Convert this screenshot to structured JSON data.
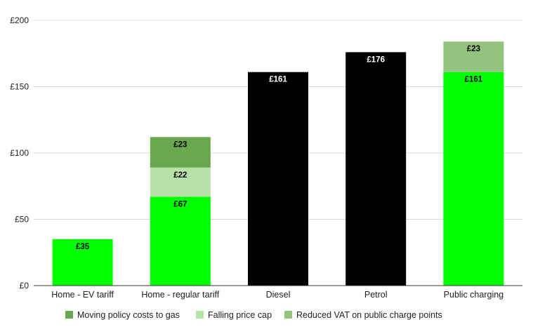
{
  "chart_data": {
    "type": "bar",
    "stacked": true,
    "categories": [
      "Home - EV tariff",
      "Home - regular tariff",
      "Diesel",
      "Petrol",
      "Public charging"
    ],
    "segments": [
      [
        {
          "value": 35,
          "label": "£35",
          "color": "#00ff00",
          "text_color": "#000000"
        }
      ],
      [
        {
          "value": 67,
          "label": "£67",
          "color": "#00ff00",
          "text_color": "#000000"
        },
        {
          "value": 22,
          "label": "£22",
          "color": "#b7e1a9",
          "text_color": "#000000",
          "series": "Falling price cap"
        },
        {
          "value": 23,
          "label": "£23",
          "color": "#6aa84f",
          "text_color": "#000000",
          "series": "Moving policy costs to gas"
        }
      ],
      [
        {
          "value": 161,
          "label": "£161",
          "color": "#000000",
          "text_color": "#ffffff"
        }
      ],
      [
        {
          "value": 176,
          "label": "£176",
          "color": "#000000",
          "text_color": "#ffffff"
        }
      ],
      [
        {
          "value": 161,
          "label": "£161",
          "color": "#00ff00",
          "text_color": "#000000"
        },
        {
          "value": 23,
          "label": "£23",
          "color": "#93c47d",
          "text_color": "#000000",
          "series": "Reduced VAT on public charge points"
        }
      ]
    ],
    "y_ticks": [
      {
        "value": 0,
        "label": "£0"
      },
      {
        "value": 50,
        "label": "£50"
      },
      {
        "value": 100,
        "label": "£100"
      },
      {
        "value": 150,
        "label": "£150"
      },
      {
        "value": 200,
        "label": "£200"
      }
    ],
    "ylim": [
      0,
      200
    ],
    "grid": true,
    "legend_position": "bottom",
    "legend": [
      {
        "name": "Moving policy costs to gas",
        "color": "#6aa84f"
      },
      {
        "name": "Falling price cap",
        "color": "#b7e1a9"
      },
      {
        "name": "Reduced VAT on public charge points",
        "color": "#93c47d"
      }
    ]
  }
}
